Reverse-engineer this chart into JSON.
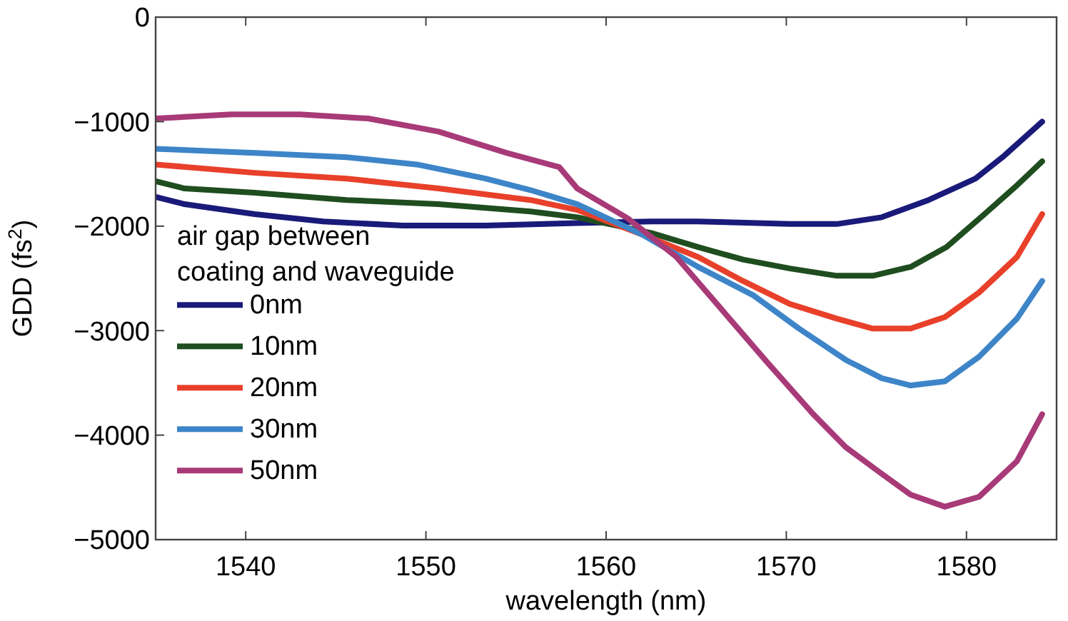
{
  "chart_data": {
    "type": "line",
    "xlabel": "wavelength (nm)",
    "ylabel": "GDD (fs$^{2}$)",
    "legend_title": "air gap between\ncoating and waveguide",
    "legend": "bottom left",
    "grid": false,
    "line_style": "solid",
    "xlim": [
      1535,
      1585
    ],
    "xticks": [
      1540,
      1550,
      1560,
      1570,
      1580
    ],
    "ylim": [
      -5000,
      0
    ],
    "yticks": [
      -5000,
      -4000,
      -3000,
      -2000,
      -1000,
      0
    ],
    "series": [
      {
        "name": "0nm",
        "color": "#1a1a7a",
        "x": [
          1535,
          1536.6,
          1540.5,
          1544.3,
          1548.7,
          1553.3,
          1558.4,
          1562.5,
          1565.1,
          1570.2,
          1572.8,
          1575.3,
          1577.9,
          1580.5,
          1582,
          1584.2
        ],
        "values": [
          -1720,
          -1790,
          -1885,
          -1955,
          -1995,
          -1995,
          -1970,
          -1955,
          -1955,
          -1980,
          -1980,
          -1915,
          -1750,
          -1545,
          -1340,
          -1000
        ]
      },
      {
        "name": "10nm",
        "color": "#1f4d1f",
        "x": [
          1535,
          1536.6,
          1540.5,
          1545.6,
          1550.7,
          1555.8,
          1558.4,
          1562.5,
          1565.1,
          1567.6,
          1570.2,
          1572.8,
          1574.8,
          1576.9,
          1578.9,
          1581,
          1582.8,
          1584.2
        ],
        "values": [
          -1570,
          -1640,
          -1680,
          -1750,
          -1790,
          -1860,
          -1915,
          -2065,
          -2200,
          -2320,
          -2405,
          -2475,
          -2475,
          -2390,
          -2200,
          -1885,
          -1610,
          -1380
        ]
      },
      {
        "name": "20nm",
        "color": "#e8402a",
        "x": [
          1535,
          1540.5,
          1545.6,
          1550.7,
          1555.8,
          1558.4,
          1562,
          1565.1,
          1567.6,
          1570.2,
          1572.8,
          1574.8,
          1576.9,
          1578.8,
          1580.7,
          1582.8,
          1584.2
        ],
        "values": [
          -1410,
          -1490,
          -1545,
          -1640,
          -1750,
          -1845,
          -2080,
          -2295,
          -2525,
          -2745,
          -2885,
          -2980,
          -2980,
          -2870,
          -2635,
          -2295,
          -1885
        ]
      },
      {
        "name": "30nm",
        "color": "#3d85c8",
        "x": [
          1535,
          1540.5,
          1545.6,
          1549.5,
          1553.3,
          1555.8,
          1558.4,
          1562,
          1565.1,
          1568.2,
          1570.7,
          1573.3,
          1575.3,
          1576.9,
          1578.8,
          1580.7,
          1582.8,
          1584.2
        ],
        "values": [
          -1260,
          -1300,
          -1340,
          -1410,
          -1545,
          -1655,
          -1790,
          -2080,
          -2390,
          -2665,
          -2980,
          -3280,
          -3455,
          -3525,
          -3485,
          -3250,
          -2885,
          -2525
        ]
      },
      {
        "name": "50nm",
        "color": "#a83a78",
        "x": [
          1535,
          1539.2,
          1543,
          1546.8,
          1550.7,
          1554.5,
          1557.4,
          1558.4,
          1561.2,
          1563.9,
          1566.4,
          1568.9,
          1571.5,
          1573.3,
          1575.1,
          1576.9,
          1578.8,
          1580.7,
          1582.8,
          1584.2
        ],
        "values": [
          -970,
          -930,
          -930,
          -970,
          -1095,
          -1300,
          -1435,
          -1640,
          -1925,
          -2295,
          -2795,
          -3295,
          -3800,
          -4115,
          -4345,
          -4570,
          -4685,
          -4590,
          -4250,
          -3800
        ]
      }
    ]
  }
}
